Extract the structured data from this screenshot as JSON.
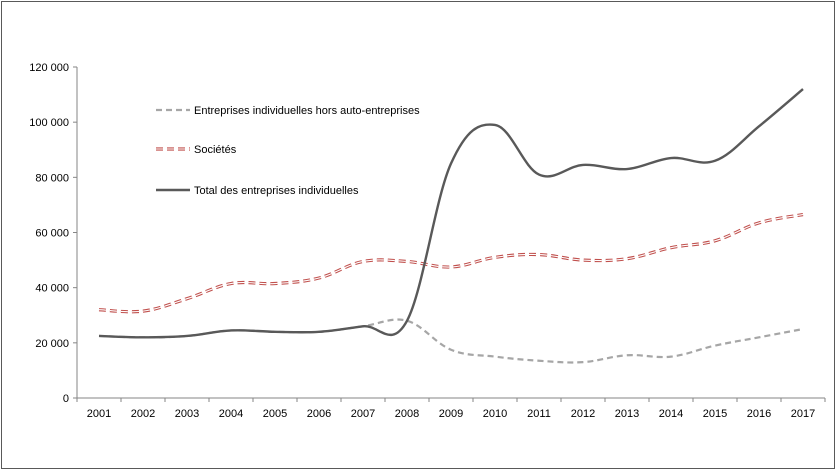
{
  "chart_data": {
    "type": "line",
    "title": "",
    "xlabel": "",
    "ylabel": "",
    "categories": [
      "2001",
      "2002",
      "2003",
      "2004",
      "2005",
      "2006",
      "2007",
      "2008",
      "2009",
      "2010",
      "2011",
      "2012",
      "2013",
      "2014",
      "2015",
      "2016",
      "2017"
    ],
    "ylim": [
      0,
      120000
    ],
    "yticks": [
      0,
      20000,
      40000,
      60000,
      80000,
      100000,
      120000
    ],
    "ytick_labels": [
      "0",
      "20 000",
      "40 000",
      "60 000",
      "80 000",
      "100 000",
      "120 000"
    ],
    "grid": false,
    "legend_position": "top-left inside",
    "series": [
      {
        "name": "Entreprises individuelles hors auto-entreprises",
        "color": "#a6a6a6",
        "style": "dashed",
        "values": [
          22500,
          22000,
          22500,
          24500,
          24000,
          24000,
          26000,
          28000,
          17500,
          15000,
          13500,
          13000,
          15500,
          15000,
          19000,
          22000,
          25000
        ]
      },
      {
        "name": "Sociétés",
        "color": "#c0504d",
        "style": "double-dashed",
        "values": [
          32000,
          31500,
          36000,
          41500,
          41500,
          43500,
          49500,
          49500,
          47500,
          51000,
          52000,
          50000,
          50500,
          54500,
          57000,
          63500,
          66500
        ]
      },
      {
        "name": "Total des entreprises individuelles",
        "color": "#595959",
        "style": "solid",
        "values": [
          22500,
          22000,
          22500,
          24500,
          24000,
          24000,
          26000,
          28000,
          85000,
          99000,
          81000,
          84500,
          83000,
          87000,
          86000,
          98500,
          112000
        ]
      }
    ]
  }
}
